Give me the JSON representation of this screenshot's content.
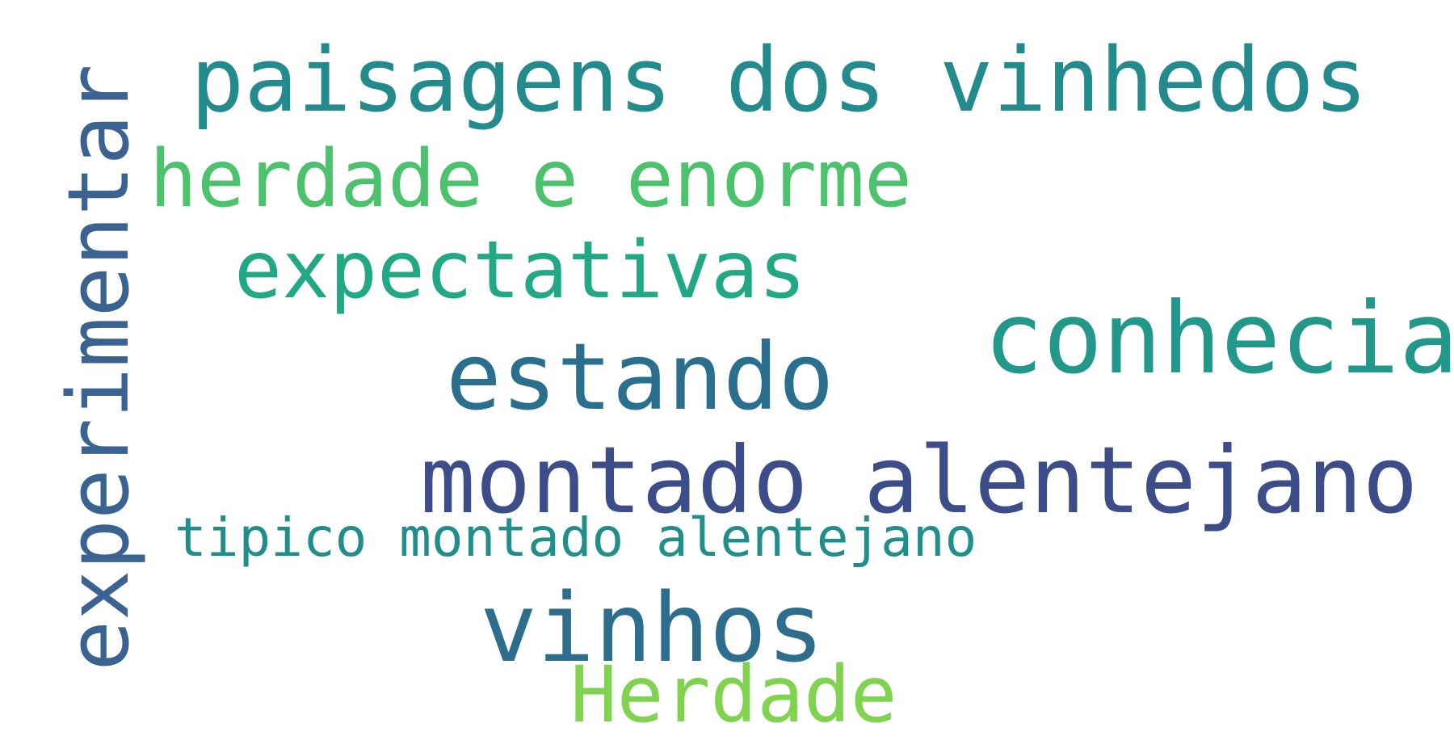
{
  "word_cloud": {
    "words": [
      {
        "text": "experimentar",
        "color": "#3a6391",
        "orientation": "vertical"
      },
      {
        "text": "paisagens dos vinhedos",
        "color": "#238a8d",
        "orientation": "horizontal"
      },
      {
        "text": "herdade e enorme",
        "color": "#4cc26c",
        "orientation": "horizontal"
      },
      {
        "text": "expectativas",
        "color": "#22a884",
        "orientation": "horizontal"
      },
      {
        "text": "conhecia",
        "color": "#21988a",
        "orientation": "horizontal"
      },
      {
        "text": "estando",
        "color": "#2a6f8e",
        "orientation": "horizontal"
      },
      {
        "text": "montado alentejano",
        "color": "#3d4d8a",
        "orientation": "horizontal"
      },
      {
        "text": "tipico montado alentejano",
        "color": "#208f8c",
        "orientation": "horizontal"
      },
      {
        "text": "vinhos",
        "color": "#2d6e8e",
        "orientation": "horizontal"
      },
      {
        "text": "Herdade",
        "color": "#7fd34e",
        "orientation": "horizontal"
      }
    ]
  }
}
